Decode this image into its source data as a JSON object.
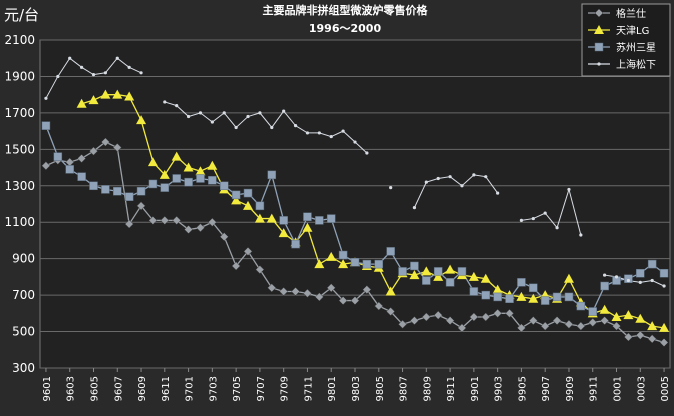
{
  "chart_data": {
    "type": "line",
    "title": "主要品牌非拼组型微波炉零售价格",
    "subtitle": "1996～2000",
    "ylabel": "元/台",
    "xlabel": "",
    "ylim": [
      300,
      2100
    ],
    "yticks": [
      300,
      500,
      700,
      900,
      1100,
      1300,
      1500,
      1700,
      1900,
      2100
    ],
    "grid": true,
    "legend_position": "top-right",
    "categories": [
      "9601",
      "9602",
      "9603",
      "9604",
      "9605",
      "9606",
      "9607",
      "9608",
      "9609",
      "9610",
      "9611",
      "9612",
      "9701",
      "9702",
      "9703",
      "9704",
      "9705",
      "9706",
      "9707",
      "9708",
      "9709",
      "9710",
      "9711",
      "9712",
      "9801",
      "9802",
      "9803",
      "9804",
      "9805",
      "9806",
      "9807",
      "9808",
      "9809",
      "9810",
      "9811",
      "9812",
      "9901",
      "9902",
      "9903",
      "9904",
      "9905",
      "9906",
      "9907",
      "9908",
      "9909",
      "9910",
      "9911",
      "9912",
      "0001",
      "0002",
      "0003",
      "0004",
      "0005"
    ],
    "tick_labels": [
      "9601",
      "9603",
      "9605",
      "9607",
      "9609",
      "9611",
      "9701",
      "9703",
      "9705",
      "9707",
      "9709",
      "9711",
      "9801",
      "9803",
      "9805",
      "9807",
      "9809",
      "9811",
      "9901",
      "9903",
      "9905",
      "9907",
      "9909",
      "9911",
      "0001",
      "0003",
      "0005"
    ],
    "series": [
      {
        "name": "格兰仕",
        "color": "#9aa0a6",
        "marker": "diamond",
        "values": [
          1410,
          1440,
          1430,
          1450,
          1490,
          1540,
          1510,
          1090,
          1190,
          1110,
          1110,
          1110,
          1060,
          1070,
          1100,
          1020,
          860,
          940,
          840,
          740,
          720,
          720,
          710,
          690,
          740,
          670,
          670,
          730,
          640,
          610,
          540,
          560,
          580,
          590,
          560,
          520,
          580,
          580,
          600,
          600,
          520,
          560,
          530,
          560,
          540,
          530,
          550,
          560,
          530,
          470,
          480,
          460,
          440
        ]
      },
      {
        "name": "天津LG",
        "color": "#f2ea3c",
        "marker": "triangle",
        "values": [
          null,
          null,
          null,
          1750,
          1770,
          1800,
          1800,
          1790,
          1660,
          1430,
          1360,
          1460,
          1400,
          1380,
          1410,
          1280,
          1220,
          1190,
          1120,
          1120,
          1040,
          990,
          1070,
          870,
          910,
          870,
          880,
          860,
          850,
          720,
          820,
          810,
          830,
          800,
          840,
          810,
          800,
          790,
          730,
          700,
          690,
          680,
          700,
          680,
          790,
          660,
          600,
          620,
          580,
          590,
          570,
          530,
          520
        ]
      },
      {
        "name": "苏州三星",
        "color": "#8fa2b8",
        "marker": "square",
        "values": [
          1630,
          1460,
          1390,
          1350,
          1300,
          1280,
          1270,
          1240,
          1270,
          1310,
          1290,
          1340,
          1320,
          1340,
          1330,
          1300,
          1250,
          1260,
          1190,
          1360,
          1110,
          980,
          1130,
          1110,
          1120,
          920,
          880,
          870,
          870,
          940,
          830,
          860,
          780,
          830,
          770,
          830,
          720,
          700,
          690,
          680,
          770,
          740,
          670,
          690,
          690,
          640,
          610,
          750,
          780,
          790,
          820,
          870,
          820
        ]
      },
      {
        "name": "上海松下",
        "color": "#d8dde4",
        "marker": "small",
        "values": [
          1780,
          1900,
          2000,
          1950,
          1910,
          1920,
          2000,
          1950,
          1920,
          null,
          1760,
          1740,
          1680,
          1700,
          1650,
          1700,
          1620,
          1680,
          1700,
          1620,
          1710,
          1630,
          1590,
          1590,
          1570,
          1600,
          1540,
          1480,
          null,
          1290,
          null,
          1180,
          1320,
          1340,
          1350,
          1300,
          1360,
          1350,
          1260,
          null,
          1110,
          1120,
          1150,
          1070,
          1280,
          1030,
          null,
          810,
          800,
          780,
          770,
          780,
          750
        ]
      }
    ]
  }
}
